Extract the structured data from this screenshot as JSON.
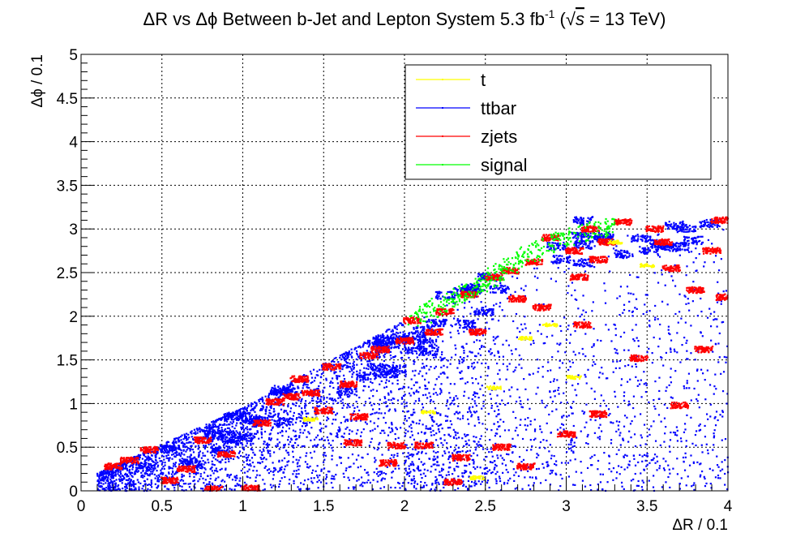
{
  "chart_data": {
    "type": "scatter",
    "title": {
      "main": "ΔR vs Δϕ Between b-Jet and Lepton System 5.3 fb",
      "sup": "-1",
      "energy_open": " (",
      "sqrt_symbol": "√",
      "s_symbol": "s",
      "energy_value": " = 13 TeV)"
    },
    "xlabel": "ΔR / 0.1",
    "ylabel": "Δϕ / 0.1",
    "xlim": [
      0,
      4
    ],
    "ylim": [
      0,
      5
    ],
    "x_ticks": [
      "0",
      "0.5",
      "1",
      "1.5",
      "2",
      "2.5",
      "3",
      "3.5",
      "4"
    ],
    "y_ticks": [
      "0",
      "0.5",
      "1",
      "1.5",
      "2",
      "2.5",
      "3",
      "3.5",
      "4",
      "4.5",
      "5"
    ],
    "grid": true,
    "legend_position": "top-right",
    "series": [
      {
        "name": "t",
        "color": "#ffff00",
        "clusters": [
          [
            1.42,
            0.82
          ],
          [
            2.15,
            0.9
          ],
          [
            2.55,
            1.18
          ],
          [
            2.9,
            1.9
          ],
          [
            3.05,
            1.3
          ],
          [
            3.5,
            2.58
          ],
          [
            2.75,
            1.75
          ],
          [
            3.3,
            2.85
          ],
          [
            2.45,
            0.15
          ]
        ]
      },
      {
        "name": "ttbar",
        "color": "#0000ff",
        "envelope": {
          "upper_edge": [
            [
              0.1,
              0.2
            ],
            [
              1.0,
              0.95
            ],
            [
              2.0,
              1.95
            ],
            [
              2.5,
              2.55
            ],
            [
              3.0,
              3.1
            ],
            [
              4.0,
              3.12
            ]
          ],
          "density_falloff": "decreasing toward large ΔR and small Δϕ"
        }
      },
      {
        "name": "zjets",
        "color": "#ff0000",
        "clusters": [
          [
            0.2,
            0.28
          ],
          [
            0.3,
            0.35
          ],
          [
            0.42,
            0.47
          ],
          [
            0.55,
            0.12
          ],
          [
            0.65,
            0.25
          ],
          [
            0.75,
            0.58
          ],
          [
            0.82,
            0.02
          ],
          [
            0.9,
            0.42
          ],
          [
            1.05,
            0.03
          ],
          [
            1.12,
            0.78
          ],
          [
            1.2,
            1.02
          ],
          [
            1.3,
            1.08
          ],
          [
            1.35,
            1.28
          ],
          [
            1.42,
            1.12
          ],
          [
            1.5,
            0.92
          ],
          [
            1.55,
            1.42
          ],
          [
            1.65,
            1.22
          ],
          [
            1.68,
            0.55
          ],
          [
            1.72,
            0.85
          ],
          [
            1.78,
            1.55
          ],
          [
            1.85,
            1.62
          ],
          [
            1.9,
            0.32
          ],
          [
            1.95,
            0.52
          ],
          [
            2.0,
            1.72
          ],
          [
            2.05,
            1.95
          ],
          [
            2.12,
            0.52
          ],
          [
            2.18,
            1.82
          ],
          [
            2.25,
            2.05
          ],
          [
            2.3,
            0.1
          ],
          [
            2.35,
            0.38
          ],
          [
            2.4,
            2.25
          ],
          [
            2.45,
            1.82
          ],
          [
            2.55,
            2.45
          ],
          [
            2.6,
            0.5
          ],
          [
            2.65,
            2.52
          ],
          [
            2.7,
            2.2
          ],
          [
            2.75,
            0.28
          ],
          [
            2.8,
            2.62
          ],
          [
            2.85,
            2.1
          ],
          [
            2.9,
            2.9
          ],
          [
            3.0,
            0.65
          ],
          [
            3.05,
            2.75
          ],
          [
            3.08,
            2.45
          ],
          [
            3.1,
            1.9
          ],
          [
            3.15,
            3.0
          ],
          [
            3.2,
            2.65
          ],
          [
            3.2,
            0.88
          ],
          [
            3.25,
            2.85
          ],
          [
            3.35,
            3.08
          ],
          [
            3.45,
            1.52
          ],
          [
            3.55,
            3.0
          ],
          [
            3.6,
            2.85
          ],
          [
            3.65,
            2.55
          ],
          [
            3.7,
            0.98
          ],
          [
            3.8,
            2.3
          ],
          [
            3.85,
            1.62
          ],
          [
            3.9,
            2.75
          ],
          [
            3.95,
            3.1
          ],
          [
            3.98,
            2.22
          ]
        ]
      },
      {
        "name": "signal",
        "color": "#00ff00",
        "band": [
          [
            2.05,
            1.95
          ],
          [
            2.3,
            2.2
          ],
          [
            2.55,
            2.45
          ],
          [
            2.75,
            2.7
          ],
          [
            3.0,
            2.9
          ],
          [
            3.3,
            3.05
          ]
        ]
      }
    ]
  }
}
